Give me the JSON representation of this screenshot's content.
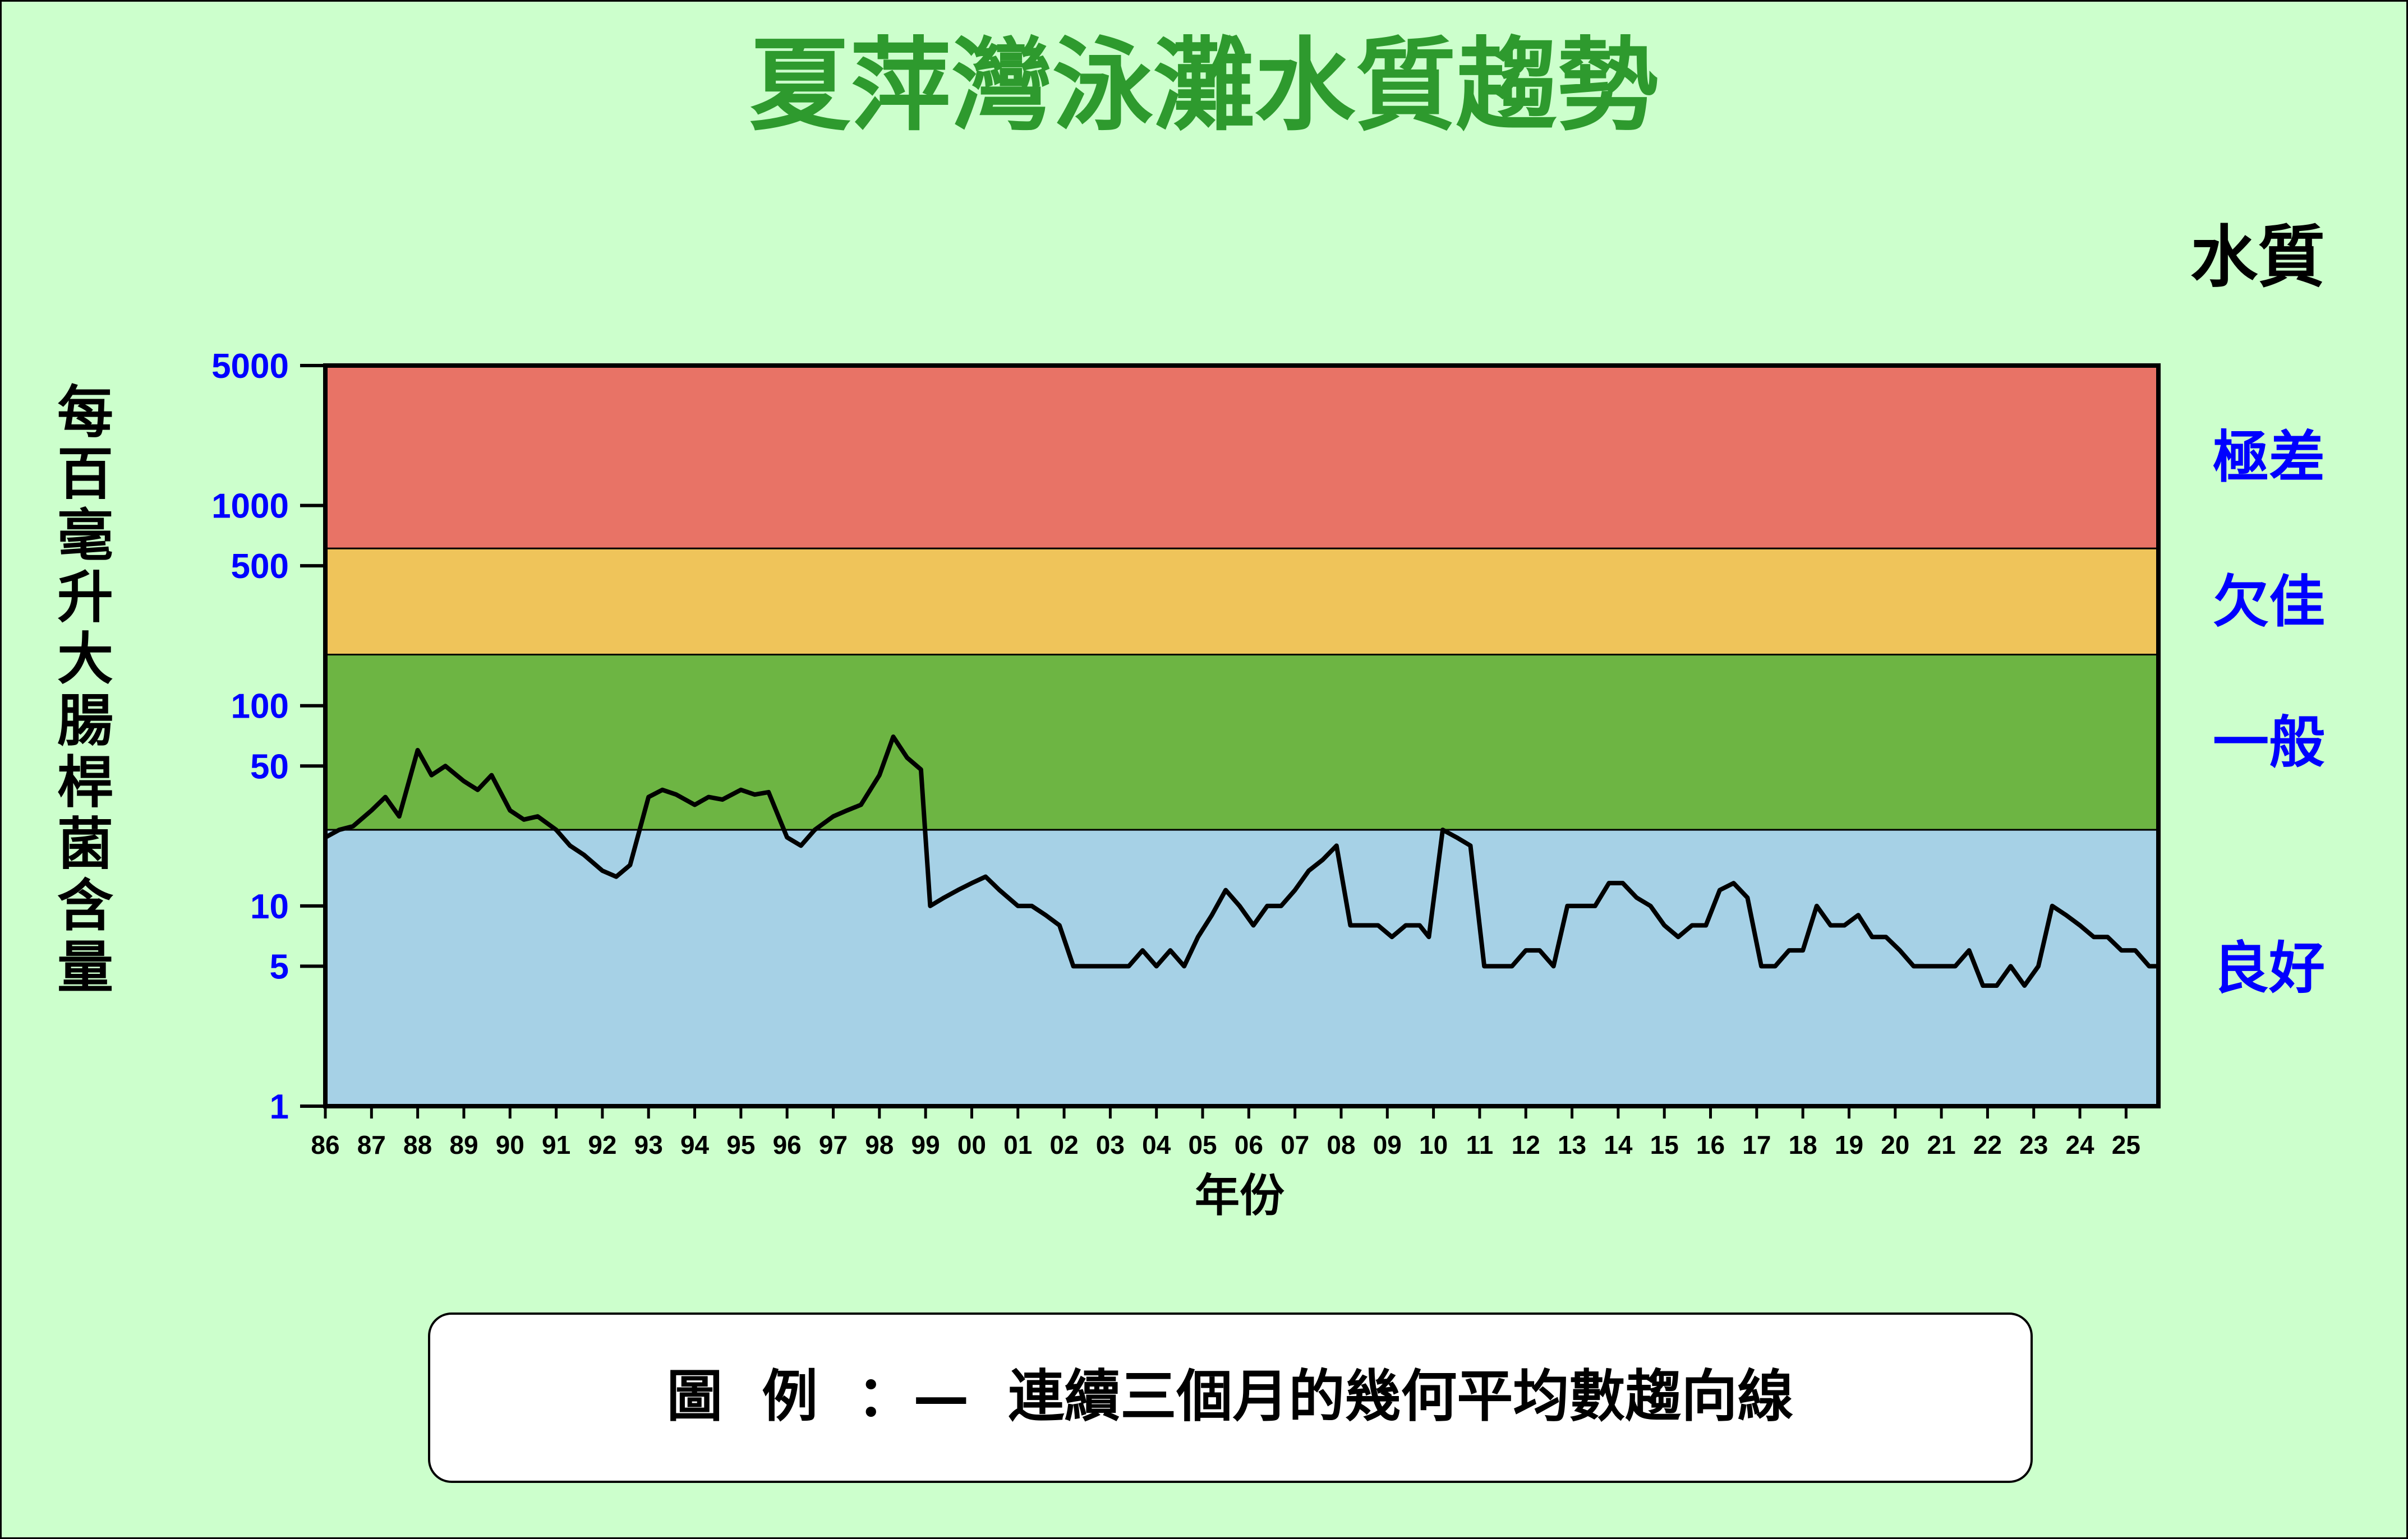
{
  "chart_data": {
    "type": "line",
    "title": "夏萍灣泳灘水質趨勢",
    "xlabel": "年份",
    "ylabel": "每百毫升大腸桿菌含量",
    "yscale": "log",
    "ylim": [
      1,
      5000
    ],
    "yticks": [
      "5000",
      "1000",
      "500",
      "100",
      "50",
      "10",
      "5",
      "1"
    ],
    "ytick_values": [
      5000,
      1000,
      500,
      100,
      50,
      10,
      5,
      1
    ],
    "xticks": [
      "86",
      "87",
      "88",
      "89",
      "90",
      "91",
      "92",
      "93",
      "94",
      "95",
      "96",
      "97",
      "98",
      "99",
      "00",
      "01",
      "02",
      "03",
      "04",
      "05",
      "06",
      "07",
      "08",
      "09",
      "10",
      "11",
      "12",
      "13",
      "14",
      "15",
      "16",
      "17",
      "18",
      "19",
      "20",
      "21",
      "22",
      "23",
      "24",
      "25"
    ],
    "xlim": [
      1986,
      2025.7
    ],
    "quality_header": "水質",
    "bands": [
      {
        "label": "極差",
        "from": 610,
        "to": 5000,
        "color": "#e87366"
      },
      {
        "label": "欠佳",
        "from": 180,
        "to": 610,
        "color": "#efc45a"
      },
      {
        "label": "一般",
        "from": 24,
        "to": 180,
        "color": "#6db543"
      },
      {
        "label": "良好",
        "from": 1,
        "to": 24,
        "color": "#a6d1e6"
      }
    ],
    "legend_label": "圖  例  ：—  連續三個月的幾何平均數趨向線",
    "series": [
      {
        "line_color": "#000000",
        "x": [
          1986.0,
          1986.3,
          1986.6,
          1987.0,
          1987.3,
          1987.6,
          1988.0,
          1988.3,
          1988.6,
          1989.0,
          1989.3,
          1989.6,
          1990.0,
          1990.3,
          1990.6,
          1991.0,
          1991.3,
          1991.6,
          1992.0,
          1992.3,
          1992.6,
          1993.0,
          1993.3,
          1993.6,
          1994.0,
          1994.3,
          1994.6,
          1995.0,
          1995.3,
          1995.6,
          1996.0,
          1996.3,
          1996.6,
          1997.0,
          1997.3,
          1997.6,
          1998.0,
          1998.3,
          1998.6,
          1998.9,
          1999.1,
          1999.4,
          1999.7,
          2000.0,
          2000.3,
          2000.6,
          2001.0,
          2001.3,
          2001.6,
          2001.9,
          2002.2,
          2002.5,
          2002.8,
          2003.1,
          2003.4,
          2003.7,
          2004.0,
          2004.3,
          2004.6,
          2004.9,
          2005.2,
          2005.5,
          2005.8,
          2006.1,
          2006.4,
          2006.7,
          2007.0,
          2007.3,
          2007.6,
          2007.9,
          2008.2,
          2008.5,
          2008.8,
          2009.1,
          2009.4,
          2009.7,
          2009.9,
          2010.2,
          2010.5,
          2010.8,
          2011.1,
          2011.4,
          2011.7,
          2012.0,
          2012.3,
          2012.6,
          2012.9,
          2013.2,
          2013.5,
          2013.8,
          2014.1,
          2014.4,
          2014.7,
          2015.0,
          2015.3,
          2015.6,
          2015.9,
          2016.2,
          2016.5,
          2016.8,
          2017.1,
          2017.4,
          2017.7,
          2018.0,
          2018.3,
          2018.6,
          2018.9,
          2019.2,
          2019.5,
          2019.8,
          2020.1,
          2020.4,
          2020.7,
          2021.0,
          2021.3,
          2021.6,
          2021.9,
          2022.2,
          2022.5,
          2022.8,
          2023.1,
          2023.4,
          2023.7,
          2024.0,
          2024.3,
          2024.6,
          2024.9,
          2025.2,
          2025.5,
          2025.7
        ],
        "values": [
          22,
          24,
          25,
          30,
          35,
          28,
          60,
          45,
          50,
          42,
          38,
          45,
          30,
          27,
          28,
          24,
          20,
          18,
          15,
          14,
          16,
          35,
          38,
          36,
          32,
          35,
          34,
          38,
          36,
          37,
          22,
          20,
          24,
          28,
          30,
          32,
          45,
          70,
          55,
          48,
          10,
          11,
          12,
          13,
          14,
          12,
          10,
          10,
          9,
          8,
          5,
          5,
          5,
          5,
          5,
          6,
          5,
          6,
          5,
          7,
          9,
          12,
          10,
          8,
          10,
          10,
          12,
          15,
          17,
          20,
          8,
          8,
          8,
          7,
          8,
          8,
          7,
          24,
          22,
          20,
          5,
          5,
          5,
          6,
          6,
          5,
          10,
          10,
          10,
          13,
          13,
          11,
          10,
          8,
          7,
          8,
          8,
          12,
          13,
          11,
          5,
          5,
          6,
          6,
          10,
          8,
          8,
          9,
          7,
          7,
          6,
          5,
          5,
          5,
          5,
          6,
          4,
          4,
          5,
          4,
          5,
          10,
          9,
          8,
          7,
          7,
          6,
          6,
          5,
          5
        ]
      }
    ]
  }
}
